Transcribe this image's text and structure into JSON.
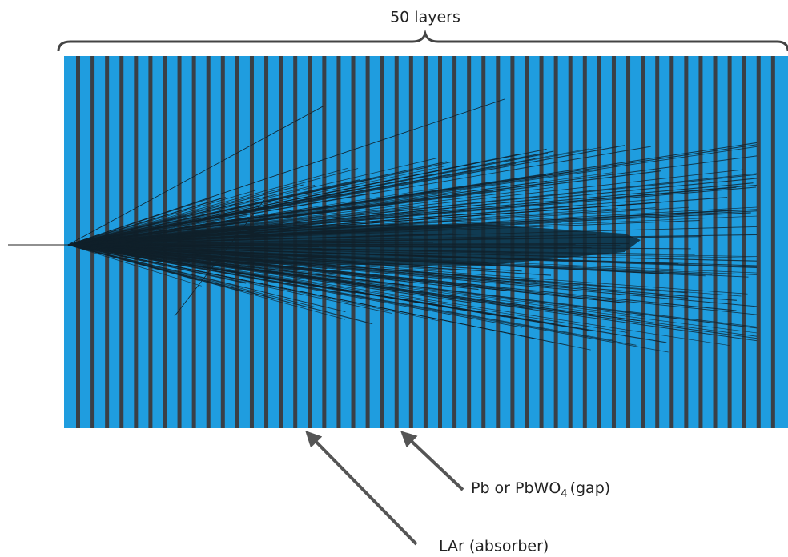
{
  "header": {
    "label": "50 layers"
  },
  "annotations": [
    {
      "text_before": "Pb or PbWO",
      "subscript": "4",
      "text_after": "(gap)"
    },
    {
      "text": "LAr (absorber)"
    }
  ]
}
